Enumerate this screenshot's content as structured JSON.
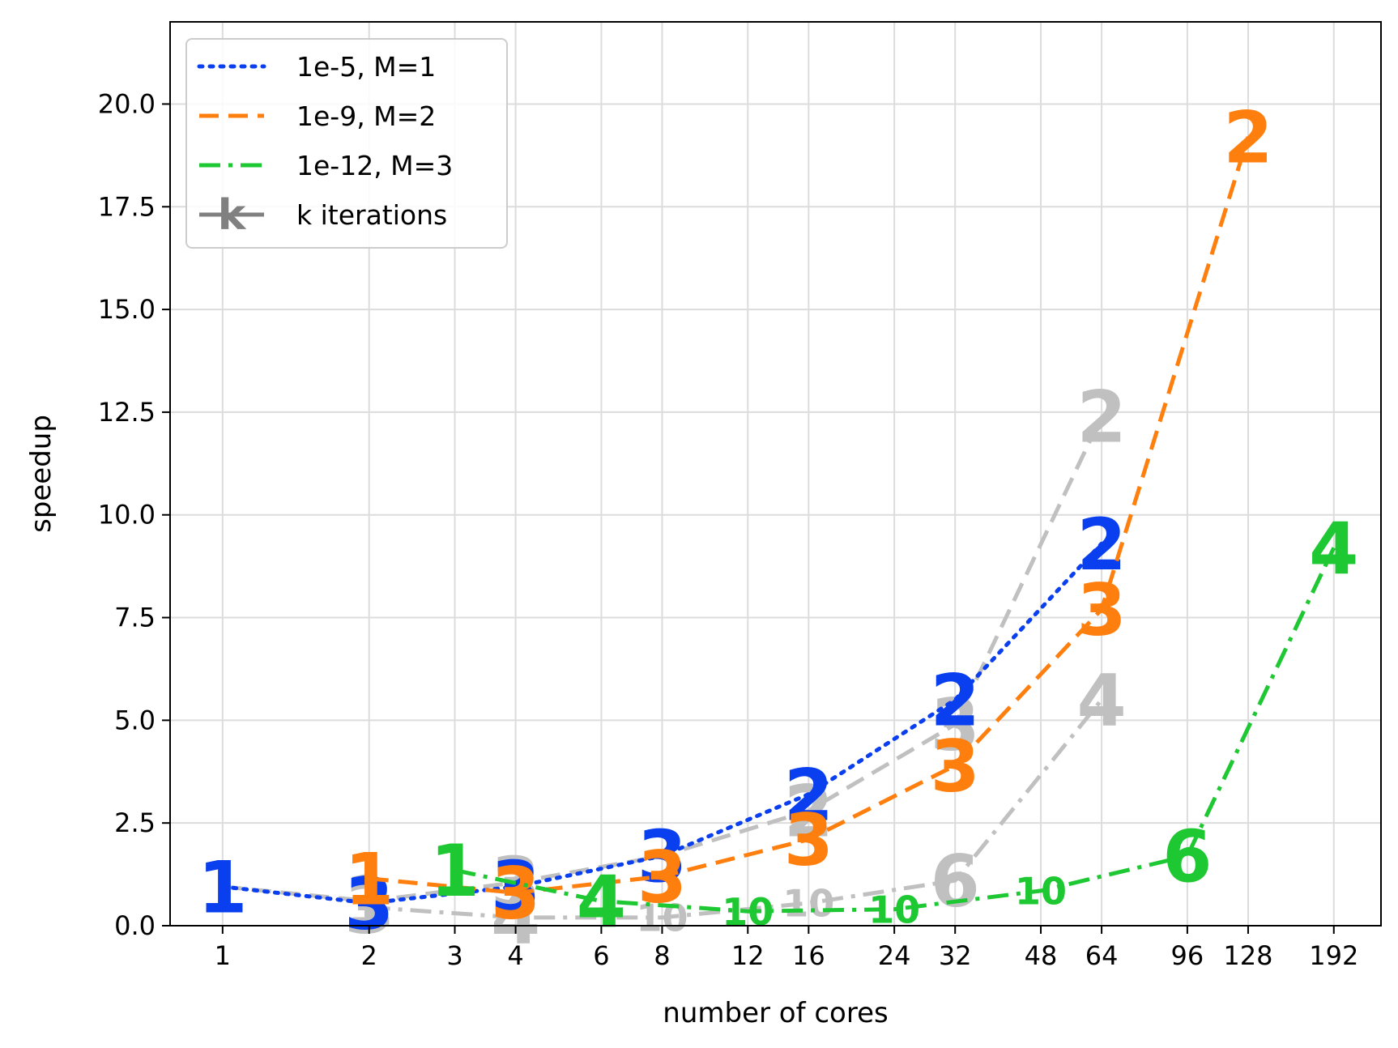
{
  "chart_data": {
    "type": "line",
    "xlabel": "number of cores",
    "ylabel": "speedup",
    "xscale": "log",
    "xlim": [
      0.78,
      240
    ],
    "ylim": [
      0,
      22
    ],
    "grid": true,
    "legend_position": "top-left",
    "xticks": [
      1,
      2,
      3,
      4,
      6,
      8,
      12,
      16,
      24,
      32,
      48,
      64,
      96,
      128,
      192
    ],
    "xtick_labels": [
      "1",
      "2",
      "3",
      "4",
      "6",
      "8",
      "12",
      "16",
      "24",
      "32",
      "48",
      "64",
      "96",
      "128",
      "192"
    ],
    "yticks": [
      0,
      2.5,
      5,
      7.5,
      10,
      12.5,
      15,
      17.5,
      20
    ],
    "ytick_labels": [
      "0.0",
      "2.5",
      "5.0",
      "7.5",
      "10.0",
      "12.5",
      "15.0",
      "17.5",
      "20.0"
    ],
    "legend": [
      {
        "label": "1e-5, M=1",
        "color": "#0a3ff0",
        "dash": "dotted"
      },
      {
        "label": "1e-9, M=2",
        "color": "#ff7f0e",
        "dash": "dashed"
      },
      {
        "label": "1e-12, M=3",
        "color": "#1ec832",
        "dash": "dashdot"
      },
      {
        "label": "k iterations",
        "color": "#808080",
        "dash": "solid"
      }
    ],
    "series": [
      {
        "name": "1e-5, M=1",
        "color": "#0a3ff0",
        "dash": "dotted",
        "x": [
          1,
          2,
          4,
          8,
          16,
          32,
          64
        ],
        "y": [
          0.95,
          0.55,
          0.95,
          1.7,
          3.2,
          5.5,
          9.3
        ],
        "k": [
          "1",
          "3",
          "3",
          "3",
          "2",
          "2",
          "2"
        ]
      },
      {
        "name": "1e-9, M=2",
        "color": "#ff7f0e",
        "dash": "dashed",
        "x": [
          2,
          4,
          8,
          16,
          32,
          64,
          128
        ],
        "y": [
          1.15,
          0.8,
          1.2,
          2.1,
          3.9,
          7.7,
          19.2
        ],
        "k": [
          "1",
          "3",
          "3",
          "3",
          "3",
          "3",
          "2"
        ]
      },
      {
        "name": "1e-12, M=3",
        "color": "#1ec832",
        "dash": "dashdot",
        "x": [
          3,
          6,
          12,
          24,
          48,
          96,
          192
        ],
        "y": [
          1.35,
          0.6,
          0.35,
          0.4,
          0.85,
          1.7,
          9.2
        ],
        "k": [
          "1",
          "4",
          "10",
          "10",
          "10",
          "6",
          "4"
        ]
      },
      {
        "name": "",
        "color": "#c0c0c0",
        "dash": "dashed",
        "x": [
          1,
          2,
          4,
          8,
          16,
          32,
          64
        ],
        "y": [
          0.95,
          0.6,
          1.05,
          1.7,
          2.8,
          4.9,
          12.4
        ],
        "k": [
          "1",
          "1",
          "3",
          "3",
          "2",
          "3",
          "2"
        ]
      },
      {
        "name": "",
        "color": "#c0c0c0",
        "dash": "dashdot",
        "x": [
          2,
          4,
          8,
          16,
          32,
          64
        ],
        "y": [
          0.45,
          0.2,
          0.2,
          0.55,
          1.1,
          5.5
        ],
        "k": [
          "3",
          "4",
          "10",
          "10",
          "6",
          "4"
        ]
      }
    ]
  }
}
